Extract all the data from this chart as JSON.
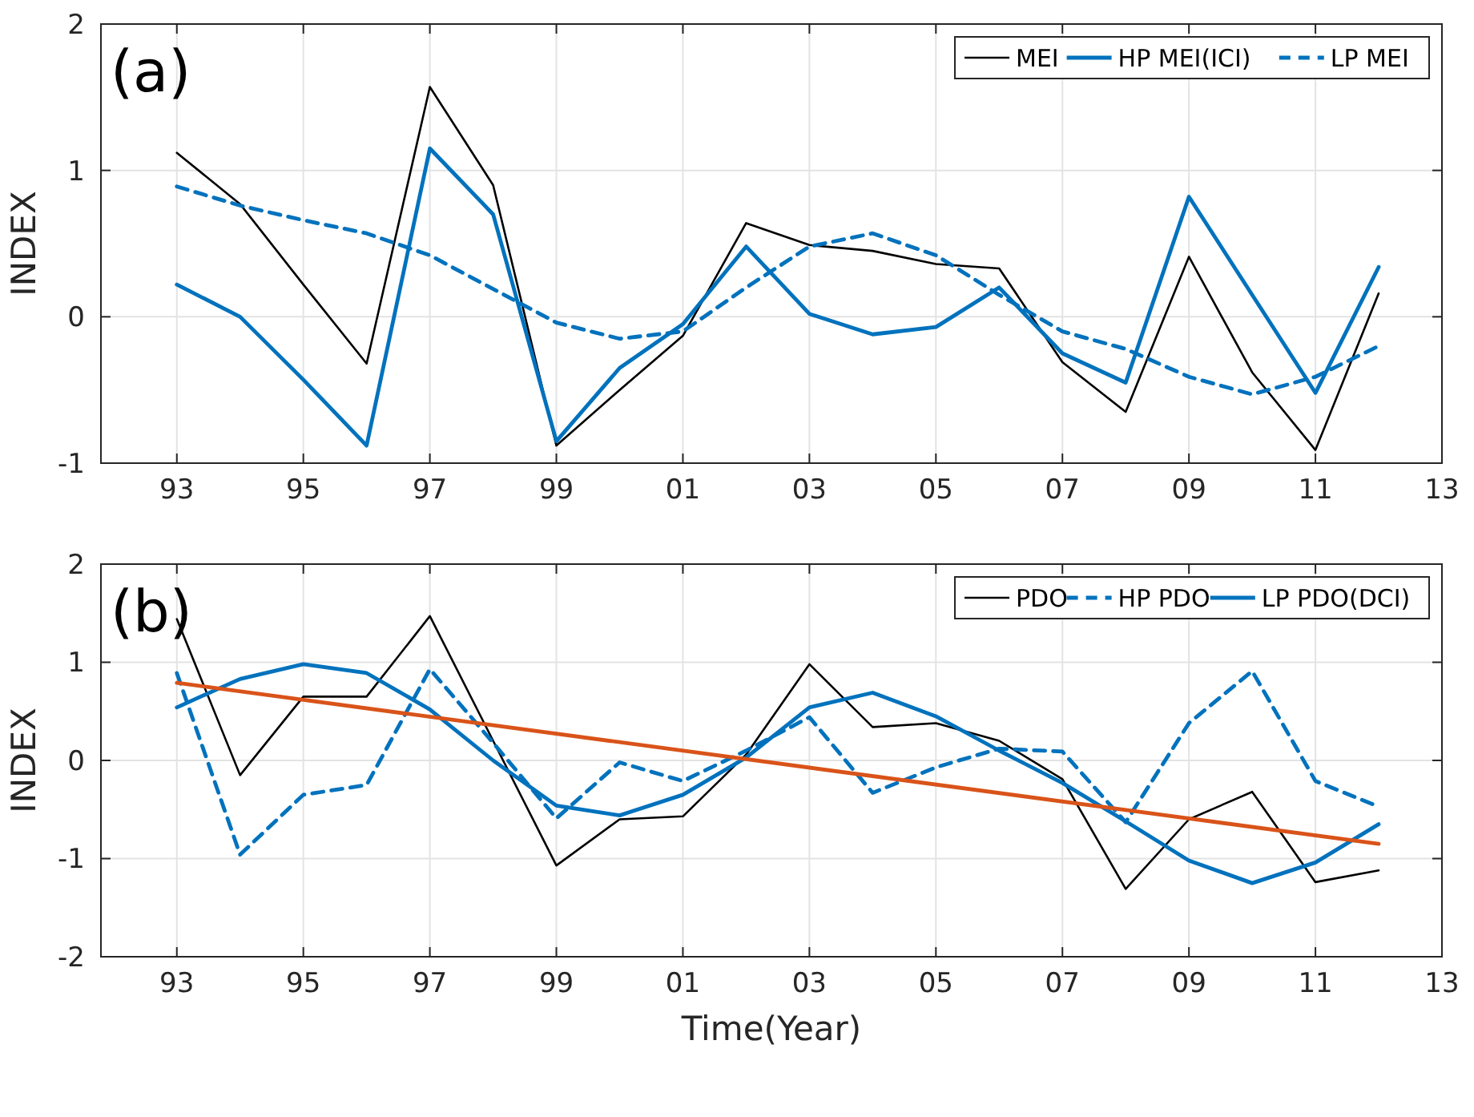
{
  "chart_data": [
    {
      "type": "line",
      "ylabel": "INDEX",
      "annotations": [
        "(a)"
      ],
      "x": [
        1993,
        1994,
        1995,
        1996,
        1997,
        1998,
        1999,
        2000,
        2001,
        2002,
        2003,
        2004,
        2005,
        2006,
        2007,
        2008,
        2009,
        2010,
        2011,
        2012
      ],
      "xlim": [
        1991.8,
        2013
      ],
      "xticks": [
        {
          "value": 1993,
          "label": "93"
        },
        {
          "value": 1995,
          "label": "95"
        },
        {
          "value": 1997,
          "label": "97"
        },
        {
          "value": 1999,
          "label": "99"
        },
        {
          "value": 2001,
          "label": "01"
        },
        {
          "value": 2003,
          "label": "03"
        },
        {
          "value": 2005,
          "label": "05"
        },
        {
          "value": 2007,
          "label": "07"
        },
        {
          "value": 2009,
          "label": "09"
        },
        {
          "value": 2011,
          "label": "11"
        },
        {
          "value": 2013,
          "label": "13"
        }
      ],
      "ylim": [
        -1,
        2
      ],
      "yticks": [
        -1,
        0,
        1,
        2
      ],
      "grid": true,
      "legend": "top right",
      "marker": "none",
      "series": [
        {
          "name": "MEI",
          "color": "#000000",
          "line_style": "solid",
          "values": [
            1.12,
            0.77,
            0.22,
            -0.32,
            1.57,
            0.9,
            -0.88,
            -0.5,
            -0.13,
            0.64,
            0.49,
            0.45,
            0.36,
            0.33,
            -0.31,
            -0.65,
            0.41,
            -0.38,
            -0.91,
            0.16
          ]
        },
        {
          "name": "HP MEI(ICI)",
          "color": "#0072bd",
          "line_style": "solid",
          "values": [
            0.22,
            0,
            -0.43,
            -0.88,
            1.15,
            0.7,
            -0.85,
            -0.35,
            -0.05,
            0.48,
            0.02,
            -0.12,
            -0.07,
            0.2,
            -0.25,
            -0.45,
            0.82,
            0.15,
            -0.52,
            0.34
          ]
        },
        {
          "name": "LP MEI",
          "color": "#0072bd",
          "line_style": "dashed",
          "values": [
            0.89,
            0.76,
            0.66,
            0.57,
            0.42,
            0.19,
            -0.04,
            -0.15,
            -0.1,
            0.2,
            0.48,
            0.57,
            0.42,
            0.15,
            -0.1,
            -0.22,
            -0.41,
            -0.53,
            -0.41,
            -0.2
          ]
        }
      ]
    },
    {
      "type": "line",
      "ylabel": "INDEX",
      "xlabel": "Time(Year)",
      "annotations": [
        "(b)"
      ],
      "x": [
        1993,
        1994,
        1995,
        1996,
        1997,
        1998,
        1999,
        2000,
        2001,
        2002,
        2003,
        2004,
        2005,
        2006,
        2007,
        2008,
        2009,
        2010,
        2011,
        2012
      ],
      "xlim": [
        1991.8,
        2013
      ],
      "xticks": [
        {
          "value": 1993,
          "label": "93"
        },
        {
          "value": 1995,
          "label": "95"
        },
        {
          "value": 1997,
          "label": "97"
        },
        {
          "value": 1999,
          "label": "99"
        },
        {
          "value": 2001,
          "label": "01"
        },
        {
          "value": 2003,
          "label": "03"
        },
        {
          "value": 2005,
          "label": "05"
        },
        {
          "value": 2007,
          "label": "07"
        },
        {
          "value": 2009,
          "label": "09"
        },
        {
          "value": 2011,
          "label": "11"
        },
        {
          "value": 2013,
          "label": "13"
        }
      ],
      "ylim": [
        -2,
        2
      ],
      "yticks": [
        -2,
        -1,
        0,
        1,
        2
      ],
      "grid": true,
      "legend": "top right",
      "marker": "none",
      "series": [
        {
          "name": "PDO",
          "color": "#000000",
          "line_style": "solid",
          "values": [
            1.44,
            -0.15,
            0.65,
            0.65,
            1.47,
            0.2,
            -1.07,
            -0.6,
            -0.57,
            0.06,
            0.98,
            0.34,
            0.38,
            0.2,
            -0.19,
            -1.31,
            -0.6,
            -0.32,
            -1.24,
            -1.12
          ]
        },
        {
          "name": "HP PDO",
          "color": "#0072bd",
          "line_style": "dashed",
          "values": [
            0.89,
            -0.96,
            -0.35,
            -0.25,
            0.93,
            0.18,
            -0.59,
            -0.02,
            -0.21,
            0.1,
            0.44,
            -0.33,
            -0.07,
            0.12,
            0.09,
            -0.63,
            0.38,
            0.91,
            -0.21,
            -0.47
          ]
        },
        {
          "name": "LP PDO(DCI)",
          "color": "#0072bd",
          "line_style": "solid",
          "values": [
            0.54,
            0.83,
            0.98,
            0.89,
            0.52,
            0,
            -0.46,
            -0.56,
            -0.35,
            0.03,
            0.54,
            0.69,
            0.45,
            0.1,
            -0.23,
            -0.62,
            -1.02,
            -1.25,
            -1.04,
            -0.65
          ]
        },
        {
          "color": "#d95319",
          "line_style": "solid",
          "x": [
            1993,
            2012
          ],
          "values": [
            0.79,
            -0.85
          ]
        }
      ]
    }
  ]
}
